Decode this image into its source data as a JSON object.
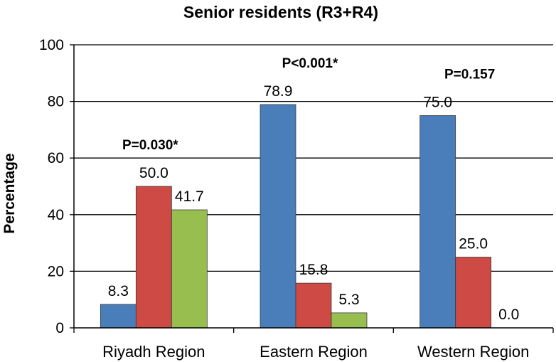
{
  "chart_data": {
    "type": "bar",
    "title": "Senior residents (R3+R4)",
    "xlabel": "",
    "ylabel": "Percentage",
    "ylim": [
      0,
      100
    ],
    "yticks": [
      0,
      20,
      40,
      60,
      80,
      100
    ],
    "grid": true,
    "categories": [
      "Riyadh Region",
      "Eastern Region",
      "Western Region"
    ],
    "series": [
      {
        "name": "Series 1",
        "color": "#4a7ebb",
        "values": [
          8.3,
          78.9,
          75.0
        ],
        "labels": [
          "8.3",
          "78.9",
          "75.0"
        ]
      },
      {
        "name": "Series 2",
        "color": "#cd4a45",
        "values": [
          50.0,
          15.8,
          25.0
        ],
        "labels": [
          "50.0",
          "15.8",
          "25.0"
        ]
      },
      {
        "name": "Series 3",
        "color": "#98be50",
        "values": [
          41.7,
          5.3,
          0.0
        ],
        "labels": [
          "41.7",
          "5.3",
          "0.0"
        ]
      }
    ],
    "annotations": [
      "P=0.030*",
      "P<0.001*",
      "P=0.157"
    ]
  }
}
